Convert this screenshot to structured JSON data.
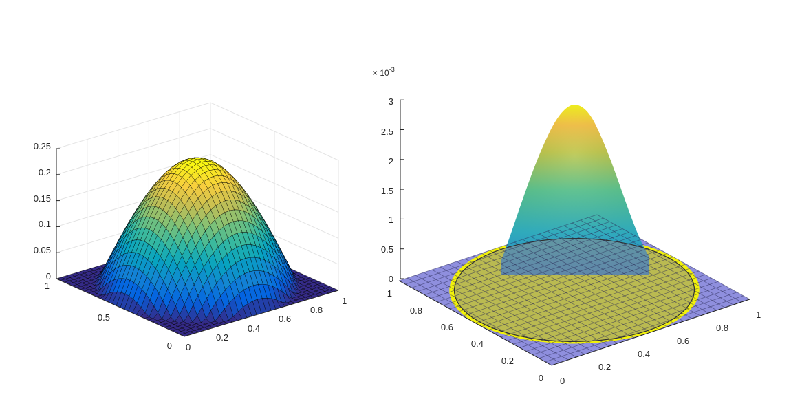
{
  "figure": {
    "background": "#ffffff"
  },
  "chart_data": [
    {
      "type": "surface",
      "title": "",
      "xlabel": "",
      "ylabel": "",
      "zlabel": "",
      "x_ticks": [
        "0",
        "0.2",
        "0.4",
        "0.6",
        "0.8",
        "1"
      ],
      "y_ticks": [
        "0",
        "0.5",
        "1"
      ],
      "z_ticks": [
        "0",
        "0.05",
        "0.1",
        "0.15",
        "0.2",
        "0.25"
      ],
      "xlim": [
        0,
        1
      ],
      "ylim": [
        0,
        1
      ],
      "zlim": [
        0,
        0.25
      ],
      "grid": true,
      "edgecolor": "#000000",
      "colormap": "parula",
      "surface": "z = 0.24 * cos(pi*r/(2*0.5)) for r < 0.5 (plateau at 0 outside), r = distance from (0.5, 0.5)",
      "peak": {
        "x": 0.5,
        "y": 0.5,
        "z": 0.24
      }
    },
    {
      "type": "surface",
      "title": "",
      "xlabel": "",
      "ylabel": "",
      "zlabel": "",
      "x_ticks": [
        "0",
        "0.2",
        "0.4",
        "0.6",
        "0.8",
        "1"
      ],
      "y_ticks": [
        "0",
        "0.2",
        "0.4",
        "0.6",
        "0.8",
        "1"
      ],
      "z_ticks": [
        "0",
        "0.5",
        "1",
        "1.5",
        "2",
        "2.5",
        "3"
      ],
      "z_exponent": {
        "base": "× 10",
        "power": "-3"
      },
      "xlim": [
        0,
        1
      ],
      "ylim": [
        0,
        1
      ],
      "zlim": [
        0,
        0.003
      ],
      "grid": false,
      "edgecolor": "none",
      "colormap": "parula",
      "peak": {
        "x": 0.5,
        "y": 0.5,
        "z": 0.00295
      },
      "overlays": [
        {
          "kind": "base-plane",
          "color": "#7b7bd8"
        },
        {
          "kind": "disk",
          "center": [
            0.5,
            0.5
          ],
          "radius": 0.5,
          "fill": "#f2f20a"
        },
        {
          "kind": "inner-disk",
          "center": [
            0.5,
            0.5
          ],
          "radius": 0.48,
          "fill": "#8c8c8c"
        }
      ]
    }
  ]
}
